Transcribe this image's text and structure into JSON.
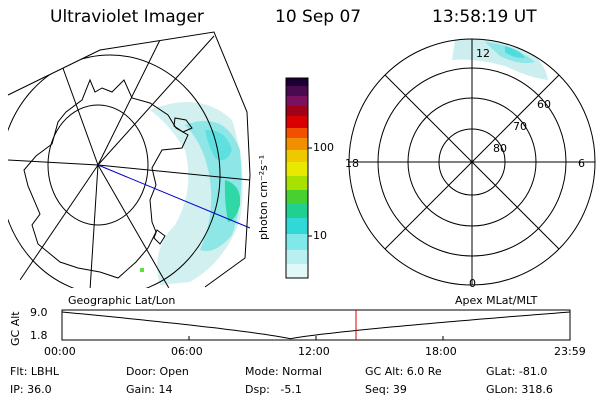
{
  "header": {
    "instrument": "Ultraviolet Imager",
    "date": "10 Sep 07",
    "time": "13:58:19 UT"
  },
  "colorbar": {
    "unit_label": "photon cm⁻²s⁻¹",
    "ticks": [
      "100",
      "10"
    ],
    "colors": [
      "#1a0030",
      "#6a1060",
      "#a00010",
      "#e00000",
      "#f07000",
      "#f0b000",
      "#e8e800",
      "#a0e000",
      "#30d030",
      "#10d8a0",
      "#40e0e0",
      "#a0f0f0",
      "#d8f8f8"
    ]
  },
  "geo_panel": {
    "title": "Geographic Lat/Lon"
  },
  "polar_panel": {
    "title": "Apex MLat/MLT",
    "mlt_labels": [
      "12",
      "18",
      "6",
      "0"
    ],
    "lat_labels": [
      "60",
      "70",
      "80"
    ]
  },
  "altitude_plot": {
    "ylabel": "GC Alt",
    "yticks": [
      "9.0",
      "1.8"
    ],
    "xticks": [
      "00:00",
      "06:00",
      "12:00",
      "18:00",
      "23:59"
    ],
    "marker_color": "#e00000"
  },
  "status": {
    "flt": "Flt: LBHL",
    "ip": "IP: 36.0",
    "door": "Door: Open",
    "gain": "Gain: 14",
    "mode": "Mode: Normal",
    "dsp": "Dsp:   -5.1",
    "gcalt": "GC Alt: 6.0 Re",
    "seq": "Seq: 39",
    "glat": "GLat: -81.0",
    "glon": "GLon: 318.6"
  }
}
